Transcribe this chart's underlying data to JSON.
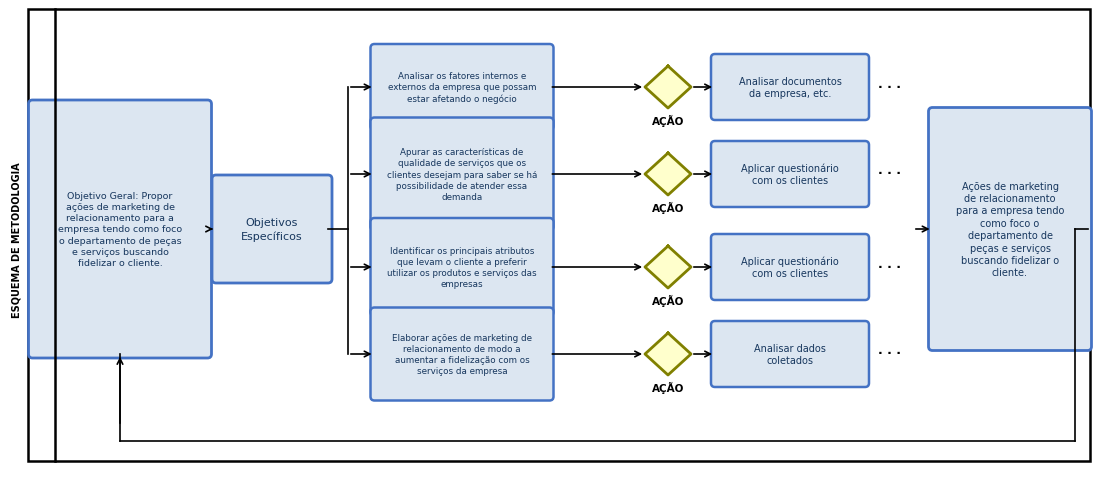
{
  "title": "ESQUEMA DE METODOLOGIA",
  "bg_color": "#ffffff",
  "border_color": "#000000",
  "box_fill": "#dce6f1",
  "box_border": "#4472c4",
  "diamond_fill": "#ffffcc",
  "diamond_border": "#808000",
  "text_color": "#17375e",
  "objetivo_geral_text": "Objetivo Geral: Propor\nações de marketing de\nrelacionamento para a\nempresa tendo como foco\no departamento de peças\ne serviços buscando\nfidelizar o cliente.",
  "objetivos_especificos_text": "Objetivos\nEspecíficos",
  "obj_boxes": [
    "Analisar os fatores internos e\nexternos da empresa que possam\nestar afetando o negócio",
    "Apurar as características de\nqualidade de serviços que os\nclientes desejam para saber se há\npossibilidade de atender essa\ndemanda",
    "Identificar os principais atributos\nque levam o cliente a preferir\nutilizar os produtos e serviços das\nempresas",
    "Elaborar ações de marketing de\nrelacionamento de modo a\naumentar a fidelização com os\nserviços da empresa"
  ],
  "acao_labels": [
    "AÇÃO",
    "AÇÃO",
    "AÇÃO",
    "AÇÃO"
  ],
  "result_boxes": [
    "Analisar documentos\nda empresa, etc.",
    "Aplicar questionário\ncom os clientes",
    "Aplicar questionário\ncom os clientes",
    "Analisar dados\ncoletados"
  ],
  "final_box_text": "Ações de marketing\nde relacionamento\npara a empresa tendo\ncomo foco o\ndepartamento de\npeças e serviços\nbuscando fidelizar o\ncliente.",
  "dots_text": ". . ."
}
